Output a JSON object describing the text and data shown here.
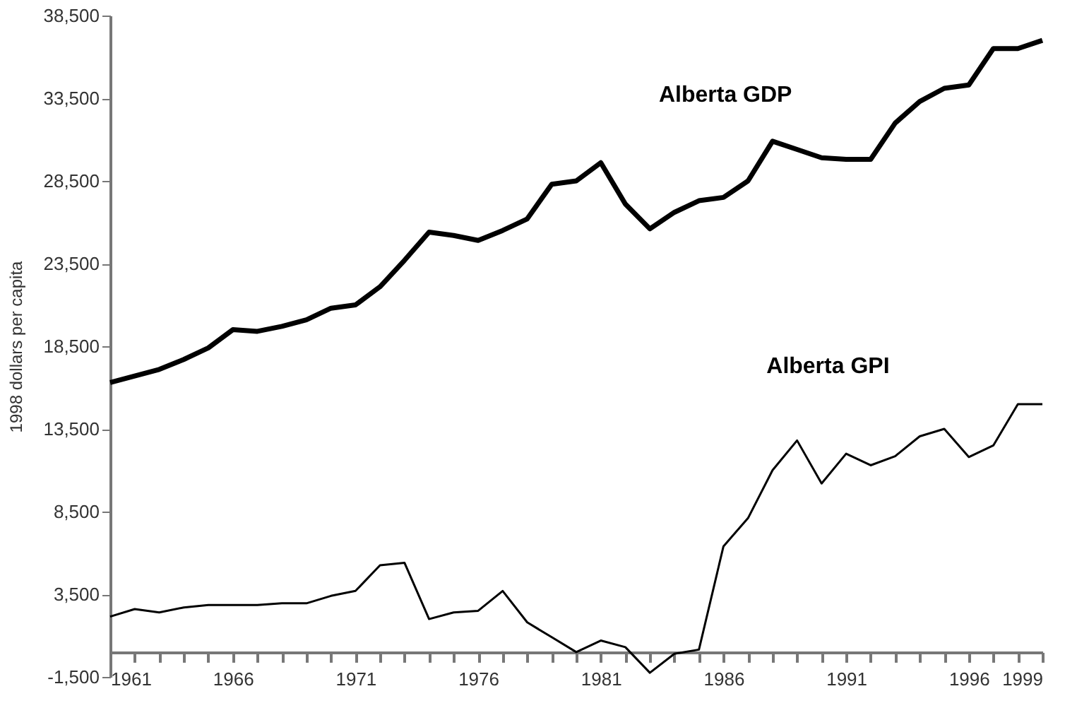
{
  "chart_data": {
    "type": "line",
    "ylabel": "1998 dollars per capita",
    "x": [
      1961,
      1962,
      1963,
      1964,
      1965,
      1966,
      1967,
      1968,
      1969,
      1970,
      1971,
      1972,
      1973,
      1974,
      1975,
      1976,
      1977,
      1978,
      1979,
      1980,
      1981,
      1982,
      1983,
      1984,
      1985,
      1986,
      1987,
      1988,
      1989,
      1990,
      1991,
      1992,
      1993,
      1994,
      1995,
      1996,
      1997,
      1998,
      1999
    ],
    "series": [
      {
        "name": "Alberta GDP",
        "color": "#000000",
        "values": [
          16300,
          16700,
          17100,
          17700,
          18400,
          19500,
          19400,
          19700,
          20100,
          20800,
          21000,
          22100,
          23700,
          25400,
          25200,
          24900,
          25500,
          26200,
          28300,
          28500,
          29600,
          27100,
          25600,
          26600,
          27300,
          27500,
          28500,
          30900,
          30400,
          29900,
          29800,
          29800,
          32000,
          33300,
          34100,
          34300,
          36500,
          36500,
          37000
        ]
      },
      {
        "name": "Alberta GPI",
        "color": "#000000",
        "values": [
          2150,
          2600,
          2400,
          2700,
          2850,
          2850,
          2850,
          2950,
          2950,
          3400,
          3700,
          5250,
          5400,
          2000,
          2400,
          2500,
          3700,
          1800,
          900,
          0,
          700,
          300,
          -1250,
          -100,
          150,
          6400,
          8100,
          11000,
          12800,
          10200,
          12000,
          11300,
          11850,
          13050,
          13500,
          11800,
          12500,
          15000,
          15000
        ]
      }
    ],
    "xlim": [
      1961,
      1999
    ],
    "xticks": [
      1961,
      {
        "value": 1962,
        "label": null
      },
      {
        "value": 1963,
        "label": null
      },
      {
        "value": 1964,
        "label": null
      },
      {
        "value": 1965,
        "label": null
      },
      1966,
      {
        "value": 1967,
        "label": null
      },
      {
        "value": 1968,
        "label": null
      },
      {
        "value": 1969,
        "label": null
      },
      {
        "value": 1970,
        "label": null
      },
      1971,
      {
        "value": 1972,
        "label": null
      },
      {
        "value": 1973,
        "label": null
      },
      {
        "value": 1974,
        "label": null
      },
      {
        "value": 1975,
        "label": null
      },
      1976,
      {
        "value": 1977,
        "label": null
      },
      {
        "value": 1978,
        "label": null
      },
      {
        "value": 1979,
        "label": null
      },
      {
        "value": 1980,
        "label": null
      },
      1981,
      {
        "value": 1982,
        "label": null
      },
      {
        "value": 1983,
        "label": null
      },
      {
        "value": 1984,
        "label": null
      },
      {
        "value": 1985,
        "label": null
      },
      1986,
      {
        "value": 1987,
        "label": null
      },
      {
        "value": 1988,
        "label": null
      },
      {
        "value": 1989,
        "label": null
      },
      {
        "value": 1990,
        "label": null
      },
      1991,
      {
        "value": 1992,
        "label": null
      },
      {
        "value": 1993,
        "label": null
      },
      {
        "value": 1994,
        "label": null
      },
      {
        "value": 1995,
        "label": null
      },
      1996,
      {
        "value": 1997,
        "label": null
      },
      {
        "value": 1998,
        "label": null
      },
      1999
    ],
    "ylim": [
      -1500,
      38500
    ],
    "yticks": [
      {
        "value": -1500,
        "label": "-1,500"
      },
      {
        "value": 3500,
        "label": "3,500"
      },
      {
        "value": 8500,
        "label": "8,500"
      },
      {
        "value": 13500,
        "label": "13,500"
      },
      {
        "value": 18500,
        "label": "18,500"
      },
      {
        "value": 23500,
        "label": "23,500"
      },
      {
        "value": 28500,
        "label": "28,500"
      },
      {
        "value": 33500,
        "label": "33,500"
      },
      {
        "value": 38500,
        "label": "38,500"
      }
    ],
    "grid": false,
    "legend": false,
    "marker": "none",
    "line_style": "solid"
  }
}
